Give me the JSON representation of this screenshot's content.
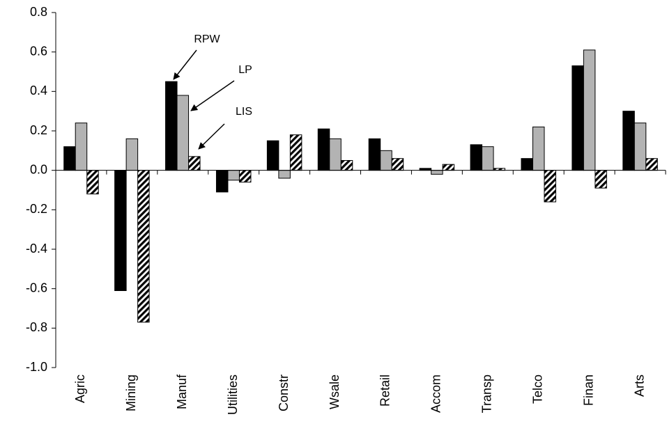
{
  "chart_data": {
    "type": "bar",
    "categories": [
      "Agric",
      "Mining",
      "Manuf",
      "Utilities",
      "Constr",
      "Wsale",
      "Retail",
      "Accom",
      "Transp",
      "Telco",
      "Finan",
      "Arts"
    ],
    "series": [
      {
        "name": "RPW",
        "color": "#000000",
        "values": [
          0.12,
          -0.61,
          0.45,
          -0.11,
          0.15,
          0.21,
          0.16,
          0.01,
          0.13,
          0.06,
          0.53,
          0.3
        ]
      },
      {
        "name": "LP",
        "color": "#b3b3b3",
        "values": [
          0.24,
          0.16,
          0.38,
          -0.05,
          -0.04,
          0.16,
          0.1,
          -0.02,
          0.12,
          0.22,
          0.61,
          0.24
        ]
      },
      {
        "name": "LIS",
        "color": "#000000",
        "hatch": true,
        "values": [
          -0.12,
          -0.77,
          0.07,
          -0.06,
          0.18,
          0.05,
          0.06,
          0.03,
          0.01,
          -0.16,
          -0.09,
          0.06
        ]
      }
    ],
    "annotations": [
      "RPW",
      "LP",
      "LIS"
    ],
    "ylim": [
      -1.0,
      0.8
    ],
    "yticks": [
      {
        "value": -1.0,
        "label": "-1.0"
      },
      -0.8,
      -0.6,
      -0.4,
      -0.2,
      {
        "value": 0,
        "label": "0.0"
      },
      0.2,
      0.4,
      0.6,
      0.8
    ],
    "grid": false
  }
}
